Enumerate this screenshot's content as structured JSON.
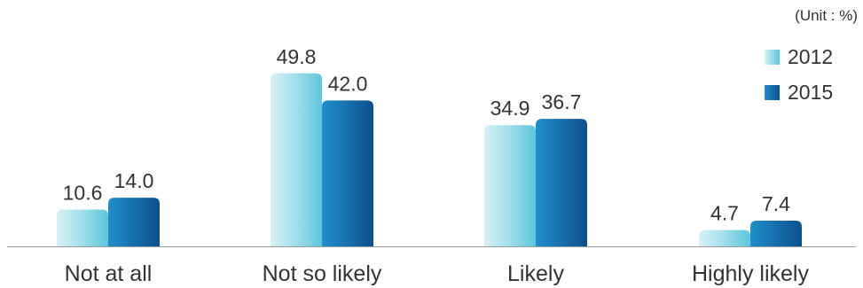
{
  "unit_label": "(Unit : %)",
  "legend": [
    {
      "label": "2012"
    },
    {
      "label": "2015"
    }
  ],
  "colors": {
    "series_2012_light": "#d9f1f6",
    "series_2012_dark": "#5cc6dc",
    "series_2015_light": "#1f8fcc",
    "series_2015_dark": "#0d4f8b",
    "axis": "#999999",
    "text": "#333333"
  },
  "chart_data": {
    "type": "bar",
    "title": "",
    "xlabel": "",
    "ylabel": "",
    "unit": "(Unit : %)",
    "categories": [
      "Not at all",
      "Not so likely",
      "Likely",
      "Highly likely"
    ],
    "series": [
      {
        "name": "2012",
        "values": [
          10.6,
          49.8,
          34.9,
          4.7
        ],
        "value_labels": [
          "10.6",
          "49.8",
          "34.9",
          "4.7"
        ]
      },
      {
        "name": "2015",
        "values": [
          14.0,
          42.0,
          36.7,
          7.4
        ],
        "value_labels": [
          "14.0",
          "42.0",
          "36.7",
          "7.4"
        ]
      }
    ],
    "ylim": [
      0,
      50
    ],
    "grid": false,
    "legend_position": "top-right"
  }
}
